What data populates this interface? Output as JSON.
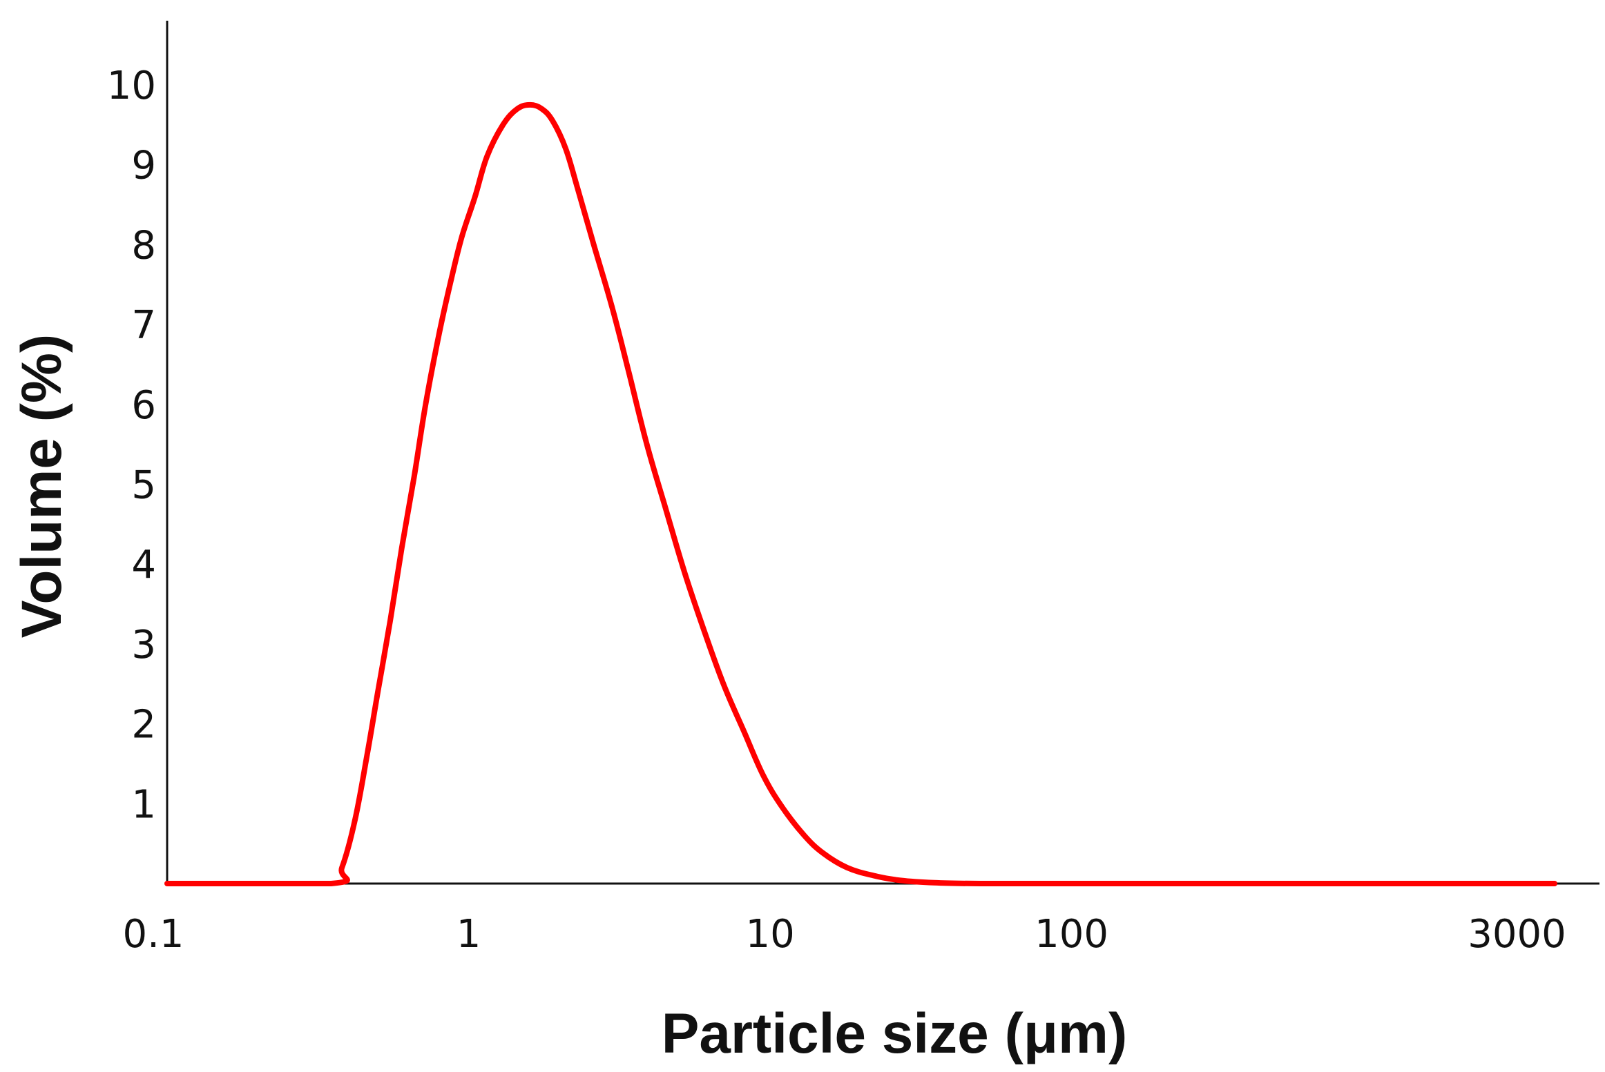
{
  "chart_data": {
    "type": "line",
    "title": "",
    "xlabel": "Particle size (μm)",
    "ylabel": "Volume (%)",
    "x_scale": "log",
    "xlim": [
      0.1,
      5000
    ],
    "ylim": [
      0,
      10.6
    ],
    "grid": false,
    "legend": "none",
    "x_ticks": [
      {
        "value": 0.1,
        "label": "0.1"
      },
      {
        "value": 1,
        "label": "1"
      },
      {
        "value": 10,
        "label": "10"
      },
      {
        "value": 100,
        "label": "100"
      },
      {
        "value": 3000,
        "label": "3000"
      }
    ],
    "y_ticks": [
      {
        "value": 1,
        "label": "1"
      },
      {
        "value": 2,
        "label": "2"
      },
      {
        "value": 3,
        "label": "3"
      },
      {
        "value": 4,
        "label": "4"
      },
      {
        "value": 5,
        "label": "5"
      },
      {
        "value": 6,
        "label": "6"
      },
      {
        "value": 7,
        "label": "7"
      },
      {
        "value": 8,
        "label": "8"
      },
      {
        "value": 9,
        "label": "9"
      },
      {
        "value": 10,
        "label": "10"
      }
    ],
    "series": [
      {
        "color": "#ff0000",
        "x": [
          0.1,
          0.35,
          0.38,
          0.42,
          0.46,
          0.5,
          0.55,
          0.6,
          0.66,
          0.72,
          0.8,
          0.88,
          0.95,
          1.05,
          1.15,
          1.3,
          1.45,
          1.6,
          1.75,
          1.9,
          2.1,
          2.3,
          2.6,
          3.0,
          3.4,
          3.9,
          4.5,
          5.2,
          6.0,
          7.0,
          8.2,
          9.5,
          11,
          13,
          15,
          18,
          22,
          27,
          35,
          50,
          100,
          500,
          1000,
          3000,
          4000
        ],
        "y": [
          0,
          0,
          0.2,
          0.8,
          1.6,
          2.4,
          3.3,
          4.2,
          5.1,
          6.0,
          6.9,
          7.6,
          8.1,
          8.6,
          9.1,
          9.5,
          9.7,
          9.75,
          9.7,
          9.55,
          9.2,
          8.7,
          8.0,
          7.2,
          6.4,
          5.5,
          4.7,
          3.9,
          3.2,
          2.5,
          1.9,
          1.35,
          0.95,
          0.6,
          0.38,
          0.2,
          0.1,
          0.04,
          0.01,
          0,
          0,
          0,
          0,
          0,
          0
        ]
      }
    ]
  }
}
